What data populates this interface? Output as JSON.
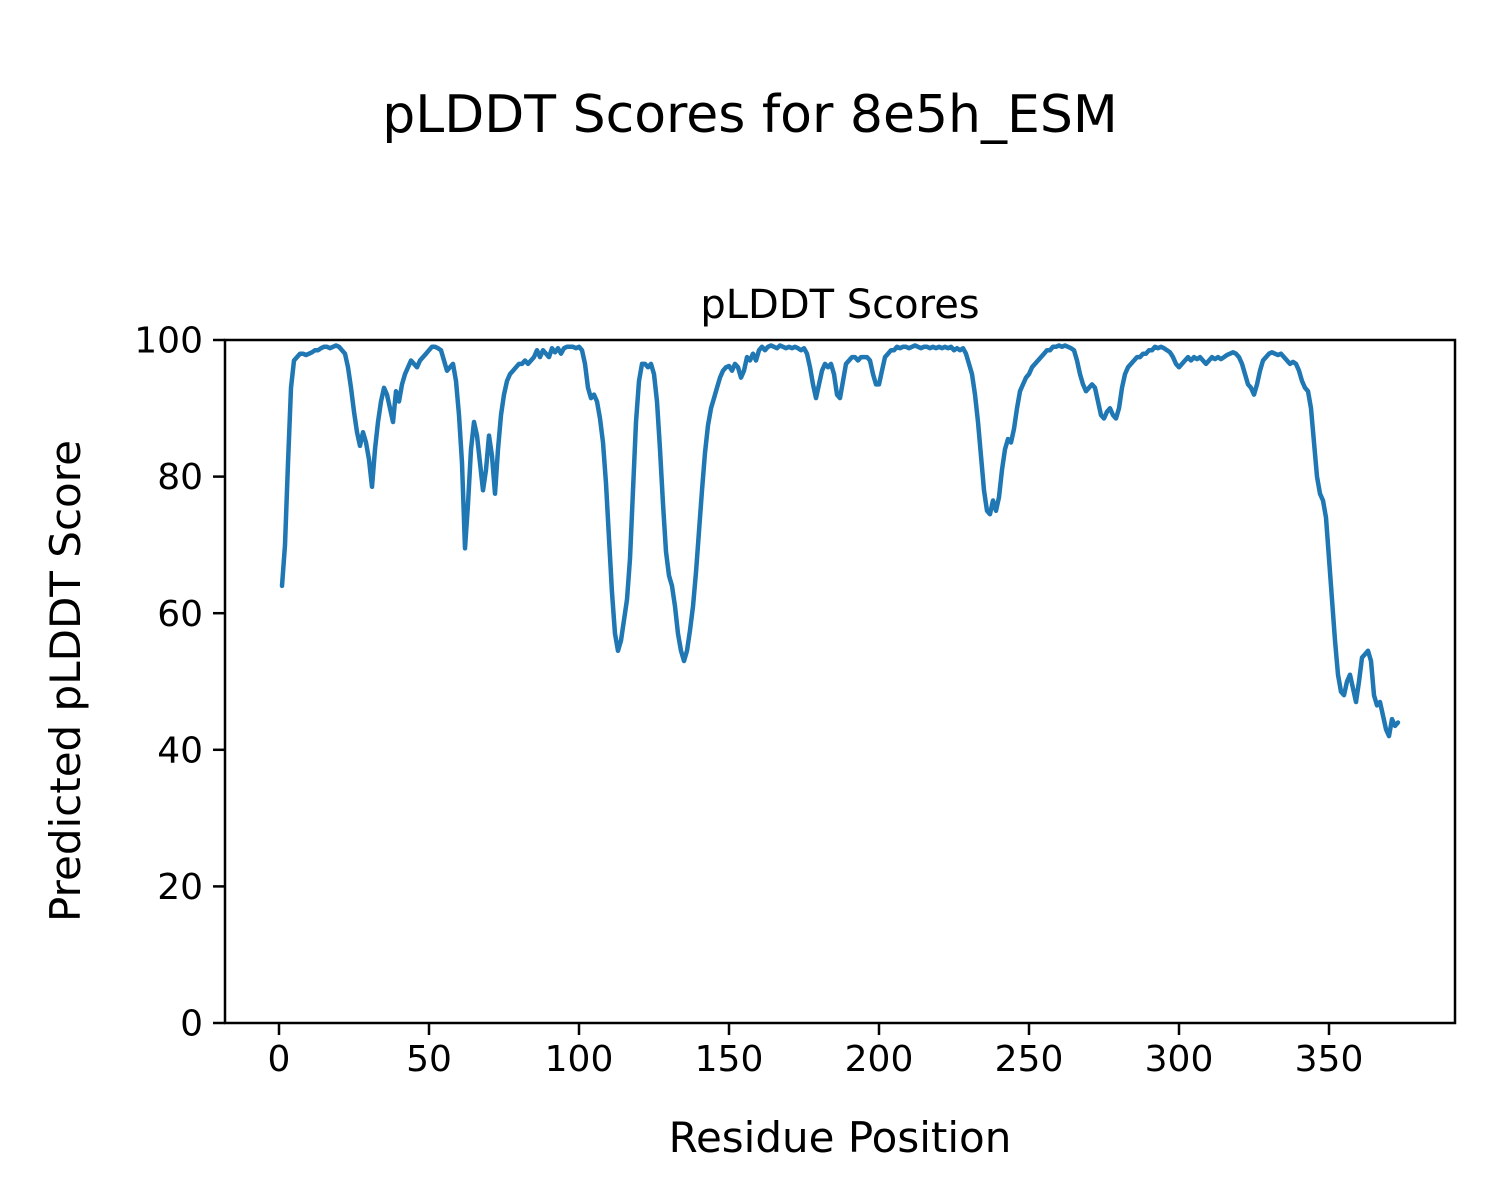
{
  "figure": {
    "suptitle": "pLDDT Scores for 8e5h_ESM"
  },
  "chart_data": {
    "type": "line",
    "title": "pLDDT Scores",
    "xlabel": "Residue Position",
    "ylabel": "Predicted pLDDT Score",
    "xlim": [
      -18,
      392
    ],
    "ylim": [
      0,
      100
    ],
    "x_ticks": [
      0,
      50,
      100,
      150,
      200,
      250,
      300,
      350
    ],
    "y_ticks": [
      0,
      20,
      40,
      60,
      80,
      100
    ],
    "grid": false,
    "legend": "none",
    "line_color": "#1f77b4",
    "series": [
      {
        "name": "pLDDT",
        "x_start": 1,
        "x_step": 1,
        "values": [
          64,
          70,
          82,
          93,
          97,
          97.5,
          98,
          98,
          97.8,
          98,
          98.2,
          98.5,
          98.5,
          98.8,
          99,
          99,
          98.8,
          99,
          99.2,
          99,
          98.5,
          98,
          96,
          93,
          89.5,
          86.5,
          84.5,
          86.5,
          85,
          82.5,
          78.5,
          84,
          88,
          91,
          93,
          92,
          90,
          88,
          92.5,
          91,
          93.5,
          95,
          96,
          97,
          96.5,
          96,
          97,
          97.5,
          98,
          98.5,
          99,
          99,
          98.8,
          98.5,
          97,
          95.5,
          96,
          96.5,
          94,
          89,
          82,
          69.5,
          76,
          84,
          88,
          86,
          82,
          78,
          81,
          86,
          83,
          77.5,
          84,
          89,
          92,
          94,
          95,
          95.5,
          96,
          96.5,
          96.5,
          97,
          96.5,
          97,
          97.5,
          98.5,
          97.5,
          98.5,
          98,
          97.5,
          98.8,
          98.2,
          98.8,
          98,
          98.8,
          99,
          99,
          99,
          98.8,
          99,
          98.5,
          96.5,
          93,
          91.5,
          92,
          91,
          88.5,
          85,
          79,
          71,
          63,
          57,
          54.5,
          56,
          59,
          62,
          68,
          78,
          88,
          94,
          96.5,
          96.5,
          96,
          96.5,
          95,
          91,
          84,
          76,
          69,
          65.5,
          64,
          61,
          57,
          54.5,
          53,
          54.5,
          57.5,
          61,
          66,
          72,
          78,
          83.5,
          87.5,
          90,
          91.5,
          93,
          94.5,
          95.5,
          96,
          96.2,
          95.5,
          96.5,
          96,
          94.5,
          95.5,
          97.5,
          97,
          98,
          97,
          98.5,
          99,
          98.5,
          99,
          99.2,
          99,
          98.8,
          99.2,
          99,
          98.8,
          99,
          98.8,
          99,
          98.8,
          98.5,
          98.8,
          98,
          96,
          93.5,
          91.5,
          93.5,
          95.5,
          96.5,
          96,
          96.5,
          95,
          92,
          91.5,
          94,
          96.5,
          97,
          97.5,
          97.5,
          97,
          97.5,
          97.5,
          97.5,
          97,
          95,
          93.5,
          93.5,
          95.5,
          97.5,
          98,
          98.5,
          98.5,
          99,
          98.8,
          99,
          99,
          98.8,
          99,
          99.2,
          99,
          98.8,
          99,
          99,
          98.8,
          99,
          98.8,
          99,
          98.8,
          99,
          98.8,
          99,
          98.5,
          98.8,
          98.5,
          98.8,
          98,
          96.5,
          95,
          92,
          88,
          83,
          78,
          75,
          74.5,
          76.5,
          75,
          77,
          81,
          84,
          85.5,
          85,
          87,
          90,
          92.5,
          93.5,
          94.5,
          95,
          96,
          96.5,
          97,
          97.5,
          98,
          98.5,
          98.5,
          99,
          99,
          99.2,
          99,
          99.2,
          99,
          98.8,
          98.5,
          97,
          95,
          93.5,
          92.5,
          93,
          93.5,
          93,
          91,
          89,
          88.5,
          89.5,
          90,
          89,
          88.5,
          90,
          93,
          95,
          96,
          96.5,
          97,
          97.5,
          97.5,
          98,
          98,
          98.5,
          98.5,
          99,
          98.8,
          99,
          98.8,
          98.5,
          98.2,
          97.5,
          96.5,
          96,
          96.5,
          97,
          97.5,
          97,
          97.5,
          97.2,
          97.5,
          97,
          96.5,
          97,
          97.5,
          97.2,
          97.5,
          97.2,
          97.5,
          97.8,
          98,
          98.2,
          98,
          97.5,
          96.5,
          95,
          93.5,
          93,
          92,
          93.5,
          95.5,
          97,
          97.5,
          98,
          98.2,
          98,
          97.8,
          98,
          97.5,
          97,
          96.5,
          96.8,
          96.5,
          95.5,
          94,
          93,
          92.5,
          90,
          85,
          80,
          77.5,
          76.5,
          74,
          68,
          62,
          56,
          51,
          48.5,
          48,
          50,
          51,
          49,
          47,
          50,
          53.5,
          54,
          54.5,
          53,
          48,
          46.5,
          47,
          45,
          43,
          42,
          44.5,
          43.5,
          44
        ]
      }
    ]
  }
}
